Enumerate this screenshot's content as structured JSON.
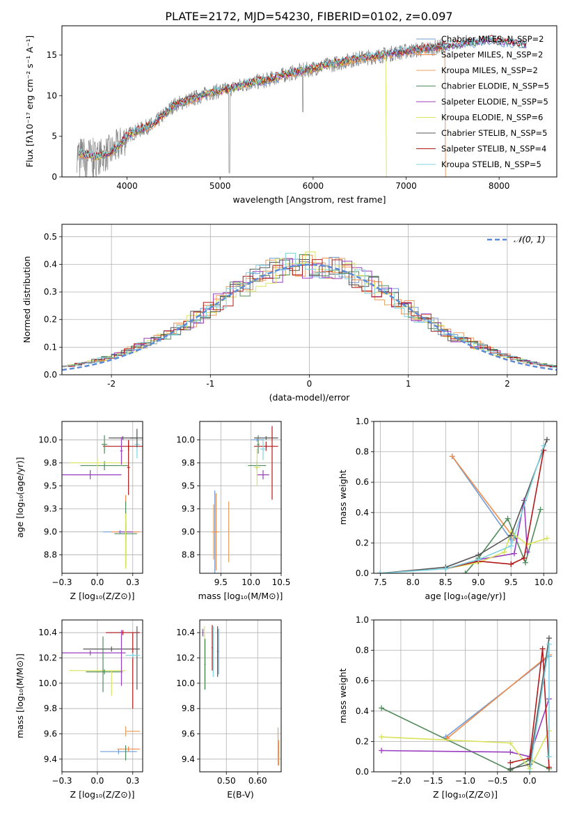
{
  "figure": {
    "title": "PLATE=2172, MJD=54230, FIBERID=0102, z=0.097"
  },
  "model_colors": [
    "#6f9bd8",
    "#f08a4b",
    "#e8a060",
    "#4f8a5a",
    "#9a3cc0",
    "#d9e35a",
    "#555555",
    "#b01818",
    "#7fd3e0"
  ],
  "chart_data": [
    {
      "id": "spectrum",
      "type": "line",
      "xlabel": "wavelength [Angstrom, rest frame]",
      "ylabel": "Flux [fλ10⁻¹⁷ erg cm⁻² s⁻¹ A⁻¹]",
      "xlim": [
        3300,
        8620
      ],
      "ylim": [
        0,
        18.6
      ],
      "xticks": [
        4000,
        5000,
        6000,
        7000,
        8000
      ],
      "yticks": [
        0,
        5,
        10,
        15
      ],
      "grid": false,
      "legend_position": "right",
      "legend": [
        "Chabrier MILES, N_SSP=2",
        "Salpeter MILES, N_SSP=2",
        "Kroupa MILES, N_SSP=2",
        "Chabrier ELODIE, N_SSP=5",
        "Salpeter ELODIE, N_SSP=5",
        "Kroupa ELODIE, N_SSP=6",
        "Chabrier STELIB, N_SSP=5",
        "Salpeter STELIB, N_SSP=4",
        "Kroupa STELIB, N_SSP=5"
      ],
      "continuum": {
        "x": [
          3500,
          3700,
          3850,
          3950,
          4000,
          4100,
          4300,
          4500,
          4700,
          4900,
          5100,
          5300,
          5500,
          5700,
          5900,
          6100,
          6300,
          6500,
          6700,
          6900,
          7100,
          7300,
          7500,
          7700,
          7900,
          8100,
          8300
        ],
        "y": [
          2.8,
          2.5,
          3.2,
          4.3,
          5.1,
          5.6,
          6.6,
          8.8,
          9.6,
          10.4,
          10.8,
          11.5,
          11.9,
          12.6,
          13.1,
          13.6,
          14.1,
          14.6,
          14.9,
          15.3,
          15.6,
          15.9,
          16.2,
          16.5,
          16.9,
          16.5,
          16.3
        ]
      }
    },
    {
      "id": "residuals",
      "type": "line",
      "xlabel": "(data-model)/error",
      "ylabel": "Normed distribution",
      "xlim": [
        -2.5,
        2.5
      ],
      "ylim": [
        0,
        0.545
      ],
      "xticks": [
        -2,
        -1,
        0,
        1,
        2
      ],
      "yticks": [
        0.0,
        0.1,
        0.2,
        0.3,
        0.4,
        0.5
      ],
      "grid": true,
      "legend_position": "top-right",
      "reference_label": "𝒩(0, 1)",
      "bin_width": 0.1
    },
    {
      "id": "age-vs-z",
      "type": "scatter",
      "xlabel": "Z [log₁₀(Z/Z⊙)]",
      "ylabel": "age  [log₁₀(age/yr)]",
      "xlim": [
        -0.25,
        0.32
      ],
      "ylim": [
        8.55,
        10.2
      ],
      "xticks": [
        -0.25,
        0.0,
        0.25
      ],
      "yticks": [
        8.75,
        9.0,
        9.25,
        9.5,
        9.75,
        10.0
      ],
      "grid": true,
      "points": [
        {
          "x": 0.16,
          "y": 9.0,
          "xerr": 0.12,
          "yerr": 0.02,
          "c": 0
        },
        {
          "x": 0.2,
          "y": 9.0,
          "xerr": 0.1,
          "yerr": 0.4,
          "c": 1
        },
        {
          "x": 0.2,
          "y": 8.98,
          "xerr": 0.08,
          "yerr": 0.35,
          "c": 3
        },
        {
          "x": 0.2,
          "y": 9.0,
          "xerr": 0.05,
          "yerr": 0.1,
          "c": 4
        },
        {
          "x": 0.2,
          "y": 8.9,
          "xerr": 0.0,
          "yerr": 0.3,
          "c": 5
        },
        {
          "x": 0.05,
          "y": 9.72,
          "xerr": 0.17,
          "yerr": 0.05,
          "c": 3
        },
        {
          "x": -0.05,
          "y": 9.62,
          "xerr": 0.22,
          "yerr": 0.05,
          "c": 4
        },
        {
          "x": 0.0,
          "y": 9.75,
          "xerr": 0.2,
          "yerr": 0.05,
          "c": 5
        },
        {
          "x": 0.18,
          "y": 10.02,
          "xerr": 0.1,
          "yerr": 0.02,
          "c": 6
        },
        {
          "x": 0.22,
          "y": 9.93,
          "xerr": 0.18,
          "yerr": 0.05,
          "c": 7
        },
        {
          "x": 0.28,
          "y": 9.95,
          "xerr": 0.02,
          "yerr": 0.15,
          "c": 8
        },
        {
          "x": 0.05,
          "y": 9.95,
          "xerr": 0.02,
          "yerr": 0.1,
          "c": 3
        },
        {
          "x": 0.17,
          "y": 9.88,
          "xerr": 0.01,
          "yerr": 0.15,
          "c": 4
        },
        {
          "x": 0.22,
          "y": 9.7,
          "xerr": 0.01,
          "yerr": 0.3,
          "c": 7
        },
        {
          "x": 0.28,
          "y": 10.02,
          "xerr": 0.05,
          "yerr": 0.1,
          "c": 6
        }
      ]
    },
    {
      "id": "age-vs-mass",
      "type": "scatter",
      "xlabel": "mass [log₁₀(M/M⊙)]",
      "xlim": [
        9.15,
        10.5
      ],
      "ylim": [
        8.55,
        10.2
      ],
      "xticks": [
        9.5,
        10.0,
        10.5
      ],
      "yticks": [
        8.75,
        9.0,
        9.25,
        9.5,
        9.75,
        10.0
      ],
      "grid": true,
      "points": [
        {
          "x": 9.4,
          "y": 9.0,
          "xerr": 0.05,
          "yerr": 0.45,
          "c": 0
        },
        {
          "x": 9.42,
          "y": 9.0,
          "xerr": 0.04,
          "yerr": 0.42,
          "c": 1
        },
        {
          "x": 9.38,
          "y": 9.0,
          "xerr": 0.03,
          "yerr": 0.3,
          "c": 2
        },
        {
          "x": 9.63,
          "y": 9.0,
          "xerr": 0.0,
          "yerr": 0.33,
          "c": 2
        },
        {
          "x": 10.1,
          "y": 9.72,
          "xerr": 0.15,
          "yerr": 0.05,
          "c": 3
        },
        {
          "x": 10.2,
          "y": 9.62,
          "xerr": 0.1,
          "yerr": 0.05,
          "c": 4
        },
        {
          "x": 10.1,
          "y": 9.7,
          "xerr": 0.05,
          "yerr": 0.2,
          "c": 5
        },
        {
          "x": 10.25,
          "y": 10.02,
          "xerr": 0.2,
          "yerr": 0.02,
          "c": 6
        },
        {
          "x": 10.25,
          "y": 9.93,
          "xerr": 0.2,
          "yerr": 0.05,
          "c": 7
        },
        {
          "x": 10.35,
          "y": 9.75,
          "xerr": 0.0,
          "yerr": 0.4,
          "c": 7
        },
        {
          "x": 10.2,
          "y": 9.9,
          "xerr": 0.05,
          "yerr": 0.12,
          "c": 8
        },
        {
          "x": 10.12,
          "y": 9.95,
          "xerr": 0.02,
          "yerr": 0.1,
          "c": 3
        },
        {
          "x": 10.1,
          "y": 10.0,
          "xerr": 0.1,
          "yerr": 0.02,
          "c": 0
        }
      ]
    },
    {
      "id": "weight-vs-age",
      "type": "line",
      "xlabel": "age  [log₁₀(age/yr)]",
      "ylabel": "mass weight",
      "xlim": [
        7.4,
        10.2
      ],
      "ylim": [
        0,
        1.0
      ],
      "xticks": [
        7.5,
        8.0,
        8.5,
        9.0,
        9.5,
        10.0
      ],
      "yticks": [
        0.0,
        0.2,
        0.4,
        0.6,
        0.8,
        1.0
      ],
      "grid": true,
      "series": [
        {
          "c": 0,
          "x": [
            8.6,
            9.5
          ],
          "y": [
            0.77,
            0.22
          ]
        },
        {
          "c": 1,
          "x": [
            8.6,
            9.55
          ],
          "y": [
            0.77,
            0.23
          ]
        },
        {
          "c": 3,
          "x": [
            8.8,
            9.0,
            9.45,
            9.72,
            9.95
          ],
          "y": [
            0.0,
            0.1,
            0.36,
            0.07,
            0.42
          ]
        },
        {
          "c": 4,
          "x": [
            8.5,
            9.0,
            9.55,
            9.7,
            9.75
          ],
          "y": [
            0.03,
            0.09,
            0.13,
            0.48,
            0.14
          ]
        },
        {
          "c": 5,
          "x": [
            8.5,
            9.0,
            9.4,
            9.5,
            9.75,
            10.05
          ],
          "y": [
            0.03,
            0.07,
            0.14,
            0.27,
            0.19,
            0.23
          ]
        },
        {
          "c": 6,
          "x": [
            7.5,
            8.5,
            9.0,
            9.5,
            10.05
          ],
          "y": [
            0.0,
            0.04,
            0.12,
            0.25,
            0.88
          ]
        },
        {
          "c": 7,
          "x": [
            8.5,
            9.0,
            9.5,
            9.7,
            10.0
          ],
          "y": [
            0.03,
            0.08,
            0.06,
            0.1,
            0.81
          ]
        },
        {
          "c": 8,
          "x": [
            7.5,
            8.5,
            9.0,
            9.5,
            10.0
          ],
          "y": [
            0.0,
            0.03,
            0.09,
            0.18,
            0.84
          ]
        }
      ]
    },
    {
      "id": "mass-vs-z",
      "type": "scatter",
      "xlabel": "Z [log₁₀(Z/Z⊙)]",
      "ylabel": "mass [log₁₀(M/M⊙)]",
      "xlim": [
        -0.25,
        0.32
      ],
      "ylim": [
        9.3,
        10.5
      ],
      "xticks": [
        -0.25,
        0.0,
        0.25
      ],
      "yticks": [
        9.4,
        9.6,
        9.8,
        10.0,
        10.2,
        10.4
      ],
      "grid": true,
      "points": [
        {
          "x": 0.15,
          "y": 9.46,
          "xerr": 0.13,
          "yerr": 0.02,
          "c": 0
        },
        {
          "x": 0.22,
          "y": 9.48,
          "xerr": 0.08,
          "yerr": 0.02,
          "c": 1
        },
        {
          "x": 0.2,
          "y": 9.45,
          "xerr": 0.0,
          "yerr": 0.06,
          "c": 3
        },
        {
          "x": 0.25,
          "y": 9.62,
          "xerr": 0.05,
          "yerr": 0.0,
          "c": 2
        },
        {
          "x": 0.2,
          "y": 9.62,
          "xerr": 0.0,
          "yerr": 0.04,
          "c": 2
        },
        {
          "x": 0.1,
          "y": 10.27,
          "xerr": 0.2,
          "yerr": 0.02,
          "c": 6
        },
        {
          "x": 0.18,
          "y": 10.4,
          "xerr": 0.12,
          "yerr": 0.02,
          "c": 7
        },
        {
          "x": -0.05,
          "y": 10.24,
          "xerr": 0.25,
          "yerr": 0.02,
          "c": 4
        },
        {
          "x": 0.0,
          "y": 10.1,
          "xerr": 0.2,
          "yerr": 0.02,
          "c": 5
        },
        {
          "x": 0.05,
          "y": 10.09,
          "xerr": 0.13,
          "yerr": 0.02,
          "c": 3
        },
        {
          "x": 0.04,
          "y": 10.15,
          "xerr": 0.0,
          "yerr": 0.22,
          "c": 3
        },
        {
          "x": 0.17,
          "y": 10.2,
          "xerr": 0.0,
          "yerr": 0.22,
          "c": 4
        },
        {
          "x": 0.25,
          "y": 10.1,
          "xerr": 0.0,
          "yerr": 0.3,
          "c": 7
        },
        {
          "x": 0.28,
          "y": 10.2,
          "xerr": 0.0,
          "yerr": 0.25,
          "c": 6
        },
        {
          "x": 0.1,
          "y": 10.0,
          "xerr": 0.0,
          "yerr": 0.1,
          "c": 5
        },
        {
          "x": 0.25,
          "y": 10.22,
          "xerr": 0.05,
          "yerr": 0.02,
          "c": 8
        }
      ]
    },
    {
      "id": "mass-vs-ebv",
      "type": "scatter",
      "xlabel": "E(B-V)",
      "xlim": [
        0.415,
        0.675
      ],
      "ylim": [
        9.3,
        10.5
      ],
      "xticks": [
        0.5,
        0.6
      ],
      "yticks": [
        9.4,
        9.6,
        9.8,
        10.0,
        10.2,
        10.4
      ],
      "grid": true,
      "points": [
        {
          "x": 0.425,
          "y": 10.4,
          "xerr": 0.002,
          "yerr": 0.03,
          "c": 4
        },
        {
          "x": 0.43,
          "y": 10.2,
          "xerr": 0.002,
          "yerr": 0.25,
          "c": 5
        },
        {
          "x": 0.432,
          "y": 10.15,
          "xerr": 0.002,
          "yerr": 0.2,
          "c": 3
        },
        {
          "x": 0.455,
          "y": 10.28,
          "xerr": 0.002,
          "yerr": 0.18,
          "c": 7
        },
        {
          "x": 0.458,
          "y": 10.25,
          "xerr": 0.002,
          "yerr": 0.2,
          "c": 8
        },
        {
          "x": 0.472,
          "y": 10.25,
          "xerr": 0.002,
          "yerr": 0.2,
          "c": 6
        },
        {
          "x": 0.475,
          "y": 10.25,
          "xerr": 0.002,
          "yerr": 0.18,
          "c": 0
        },
        {
          "x": 0.665,
          "y": 9.5,
          "xerr": 0.002,
          "yerr": 0.15,
          "c": 2
        },
        {
          "x": 0.667,
          "y": 9.45,
          "xerr": 0.002,
          "yerr": 0.1,
          "c": 1
        }
      ]
    },
    {
      "id": "weight-vs-z",
      "type": "line",
      "xlabel": "Z [log₁₀(Z/Z⊙)]",
      "ylabel": "mass weight",
      "xlim": [
        -2.42,
        0.42
      ],
      "ylim": [
        0,
        1.0
      ],
      "xticks": [
        -2.0,
        -1.5,
        -1.0,
        -0.5,
        0.0
      ],
      "yticks": [
        0.0,
        0.2,
        0.4,
        0.6,
        0.8,
        1.0
      ],
      "grid": true,
      "series": [
        {
          "c": 0,
          "x": [
            -1.3,
            0.3
          ],
          "y": [
            0.23,
            0.76
          ]
        },
        {
          "c": 1,
          "x": [
            -1.28,
            0.3
          ],
          "y": [
            0.22,
            0.77
          ]
        },
        {
          "c": 3,
          "x": [
            -2.3,
            -0.3,
            0.0,
            0.3
          ],
          "y": [
            0.42,
            0.01,
            0.08,
            0.02
          ]
        },
        {
          "c": 4,
          "x": [
            -2.3,
            -0.3,
            0.0,
            0.3
          ],
          "y": [
            0.14,
            0.13,
            0.1,
            0.48
          ]
        },
        {
          "c": 5,
          "x": [
            -2.3,
            -0.3,
            0.0,
            0.3
          ],
          "y": [
            0.23,
            0.19,
            0.02,
            0.27
          ]
        },
        {
          "c": 6,
          "x": [
            -0.3,
            0.0,
            0.3
          ],
          "y": [
            0.02,
            0.05,
            0.88
          ]
        },
        {
          "c": 7,
          "x": [
            -0.3,
            0.0,
            0.2,
            0.3
          ],
          "y": [
            0.06,
            0.09,
            0.81,
            0.03
          ]
        },
        {
          "c": 8,
          "x": [
            0.0,
            0.3,
            0.3
          ],
          "y": [
            0.0,
            0.84,
            0.1
          ]
        }
      ]
    }
  ]
}
